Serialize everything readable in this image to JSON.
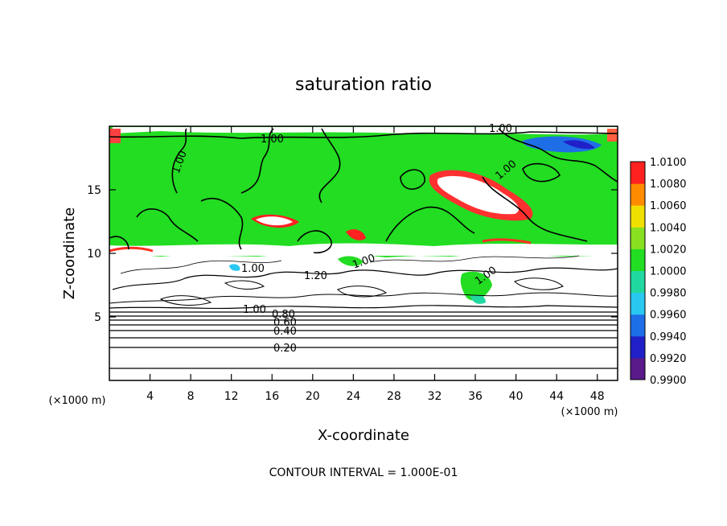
{
  "chart_data": {
    "type": "heatmap",
    "title": "saturation ratio",
    "xlabel": "X-coordinate",
    "ylabel": "Z-coordinate",
    "x_unit": "(×1000 m)",
    "z_unit": "(×1000 m)",
    "xlim": [
      0,
      50
    ],
    "ylim": [
      0,
      20
    ],
    "x_ticks": [
      "4",
      "8",
      "12",
      "16",
      "20",
      "24",
      "28",
      "32",
      "36",
      "40",
      "44",
      "48"
    ],
    "y_ticks": [
      "5",
      "10",
      "15"
    ],
    "colorbar": {
      "levels": [
        "0.9900",
        "0.9920",
        "0.9940",
        "0.9960",
        "0.9980",
        "1.0000",
        "1.0020",
        "1.0040",
        "1.0060",
        "1.0080",
        "1.0100"
      ],
      "colors": [
        "#5a1a8a",
        "#2020c8",
        "#1e6ee8",
        "#28c8f0",
        "#20d8a0",
        "#22dd22",
        "#88e020",
        "#f0e000",
        "#ff8c00",
        "#ff2020",
        "#f3a0a0"
      ]
    },
    "contour_labels": [
      "1.00",
      "1.00",
      "1.00",
      "1.00",
      "1.00",
      "1.00",
      "1.20",
      "1.00",
      "1.00",
      "0.80",
      "0.60",
      "0.40",
      "0.20"
    ],
    "footnote": "CONTOUR INTERVAL = 1.000E-01"
  }
}
